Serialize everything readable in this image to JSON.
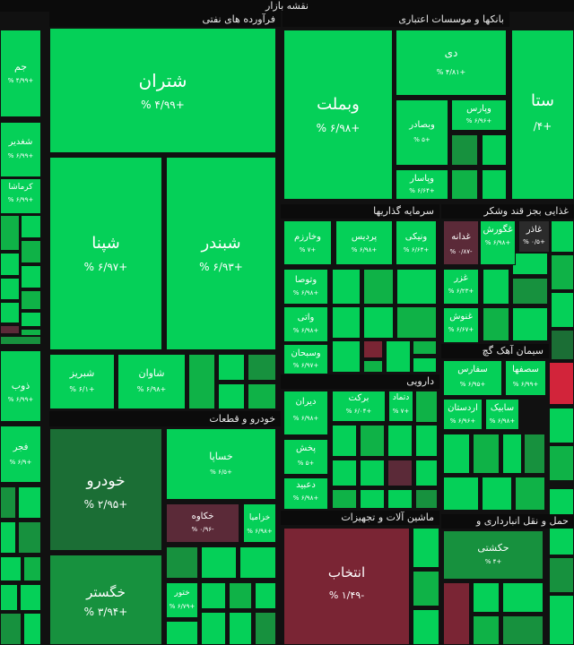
{
  "title": "نقشه بازار",
  "palette": {
    "g4": "#05d058",
    "g3": "#0fb247",
    "g2": "#17913e",
    "g1": "#1b6e35",
    "neutral": "#2b2b2b",
    "r1": "#5b2a38",
    "r2": "#7a2534",
    "r3": "#d2243a",
    "header": "#0b0b0b",
    "border": "#111111"
  },
  "chart_data": {
    "type": "treemap",
    "title": "نقشه بازار",
    "sectors": [
      "فرآورده های نفتی",
      "بانکها و موسسات اعتباری",
      "سرمایه گذاریها",
      "غذایی بجز قند وشکر",
      "خودرو و قطعات",
      "دارویی",
      "سیمان آهک گچ",
      "ماشین آلات و تجهیزات",
      "حمل و نقل انبارداری و"
    ],
    "stocks": [
      {
        "name": "شتران",
        "change": "+4.99 %"
      },
      {
        "name": "شپنا",
        "change": "+6.97 %"
      },
      {
        "name": "شبندر",
        "change": "+6.93 %"
      },
      {
        "name": "شاوان",
        "change": "+6.98 %"
      },
      {
        "name": "شبریز",
        "change": "+6.1 %"
      },
      {
        "name": "وبملت",
        "change": "+6.98 %"
      },
      {
        "name": "دی",
        "change": "+4.81 %"
      },
      {
        "name": "وپارس",
        "change": "+6.96 %"
      },
      {
        "name": "وبصادر",
        "change": "+5 %"
      },
      {
        "name": "وپاسار",
        "change": "+6.64 %"
      },
      {
        "name": "ستا",
        "change": "+4/"
      },
      {
        "name": "جم",
        "change": "+4.99 %"
      },
      {
        "name": "شغدیر",
        "change": "+6.99 %"
      },
      {
        "name": "کرماشا",
        "change": "+6.99 %"
      },
      {
        "name": "ذوب",
        "change": "+6.99 %"
      },
      {
        "name": "فجر",
        "change": "+6.9 %"
      },
      {
        "name": "وخارزم",
        "change": "+7 %"
      },
      {
        "name": "پردیس",
        "change": "+6.98 %"
      },
      {
        "name": "ونیکی",
        "change": "+6.64 %"
      },
      {
        "name": "وتوصا",
        "change": "+6.98 %"
      },
      {
        "name": "واتی",
        "change": "+6.98 %"
      },
      {
        "name": "وسبحان",
        "change": "+6.97 %"
      },
      {
        "name": "غدانه",
        "change": "-0.87 %"
      },
      {
        "name": "غگورش",
        "change": "+6.98 %"
      },
      {
        "name": "غاذر",
        "change": "+0.5 %"
      },
      {
        "name": "غزر",
        "change": "+6.23 %"
      },
      {
        "name": "غنوش",
        "change": "+6.67 %"
      },
      {
        "name": "خودرو",
        "change": "+2.95 %"
      },
      {
        "name": "خساپا",
        "change": "+6.5 %"
      },
      {
        "name": "خکاوه",
        "change": "-0.96 %"
      },
      {
        "name": "خزامیا",
        "change": "+6.98 %"
      },
      {
        "name": "خگستر",
        "change": "+3.94 %"
      },
      {
        "name": "ختور",
        "change": "+6.79 %"
      },
      {
        "name": "دیران",
        "change": "+6.98 %"
      },
      {
        "name": "برکت",
        "change": "+6.04 %"
      },
      {
        "name": "دتماد",
        "change": "+7 %"
      },
      {
        "name": "پخش",
        "change": "+5 %"
      },
      {
        "name": "دعبید",
        "change": "+6.98 %"
      },
      {
        "name": "سفارس",
        "change": "+6.95 %"
      },
      {
        "name": "سصفها",
        "change": "+6.99 %"
      },
      {
        "name": "اردستان",
        "change": "+6.96 %"
      },
      {
        "name": "سابیک",
        "change": "+6.98 %"
      },
      {
        "name": "انتخاب",
        "change": "-1.49 %"
      },
      {
        "name": "حکشتی",
        "change": "+4 %"
      }
    ]
  },
  "view": {
    "title": "نقشه بازار",
    "sectors": [
      {
        "label": "فرآورده های نفتی"
      },
      {
        "label": "بانکها و موسسات اعتباری"
      },
      {
        "label": "سرمایه گذاریها"
      },
      {
        "label": "غذایی بجز قند وشکر"
      },
      {
        "label": "خودرو و قطعات"
      },
      {
        "label": "دارویی"
      },
      {
        "label": "سیمان آهک گچ"
      },
      {
        "label": "ماشین آلات و تجهیزات"
      },
      {
        "label": "حمل و نقل انبارداری و"
      }
    ],
    "stocks": [
      {
        "sym": "شتران",
        "pct": "+۴/۹۹ %",
        "c": "g4"
      },
      {
        "sym": "شپنا",
        "pct": "+۶/۹۷ %",
        "c": "g4"
      },
      {
        "sym": "شبندر",
        "pct": "+۶/۹۳ %",
        "c": "g4"
      },
      {
        "sym": "شاوان",
        "pct": "+۶/۹۸ %",
        "c": "g4"
      },
      {
        "sym": "شبریز",
        "pct": "+۶/۱ %",
        "c": "g4"
      },
      {
        "sym": "وبملت",
        "pct": "+۶/۹۸ %",
        "c": "g4"
      },
      {
        "sym": "دی",
        "pct": "+۴/۸۱ %",
        "c": "g4"
      },
      {
        "sym": "وپارس",
        "pct": "+۶/۹۶ %",
        "c": "g4"
      },
      {
        "sym": "وبصادر",
        "pct": "+۵ %",
        "c": "g4"
      },
      {
        "sym": "وپاسار",
        "pct": "+۶/۶۴ %",
        "c": "g4"
      },
      {
        "sym": "ستا",
        "pct": "+۴/",
        "c": "g4"
      },
      {
        "sym": "جم",
        "pct": "+۴/۹۹ %",
        "c": "g4"
      },
      {
        "sym": "شغدیر",
        "pct": "+۶/۹۹ %",
        "c": "g4"
      },
      {
        "sym": "کرماشا",
        "pct": "+۶/۹۹ %",
        "c": "g4"
      },
      {
        "sym": "ذوب",
        "pct": "+۶/۹۹ %",
        "c": "g4"
      },
      {
        "sym": "فجر",
        "pct": "+۶/۹ %",
        "c": "g4"
      },
      {
        "sym": "وخارزم",
        "pct": "+۷ %",
        "c": "g4"
      },
      {
        "sym": "پردیس",
        "pct": "+۶/۹۸ %",
        "c": "g4"
      },
      {
        "sym": "ونیکی",
        "pct": "+۶/۶۴ %",
        "c": "g4"
      },
      {
        "sym": "وتوصا",
        "pct": "+۶/۹۸ %",
        "c": "g4"
      },
      {
        "sym": "واتی",
        "pct": "+۶/۹۸ %",
        "c": "g4"
      },
      {
        "sym": "وسبحان",
        "pct": "+۶/۹۷ %",
        "c": "g4"
      },
      {
        "sym": "غدانه",
        "pct": "-۰/۸۷ %",
        "c": "r1"
      },
      {
        "sym": "غگورش",
        "pct": "+۶/۹۸ %",
        "c": "g4"
      },
      {
        "sym": "غاذر",
        "pct": "+۰/۵ %",
        "c": "neutral"
      },
      {
        "sym": "غزر",
        "pct": "+۶/۲۳ %",
        "c": "g4"
      },
      {
        "sym": "غنوش",
        "pct": "+۶/۶۷ %",
        "c": "g4"
      },
      {
        "sym": "خودرو",
        "pct": "+۲/۹۵ %",
        "c": "g1"
      },
      {
        "sym": "خساپا",
        "pct": "+۶/۵ %",
        "c": "g4"
      },
      {
        "sym": "خکاوه",
        "pct": "-۰/۹۶ %",
        "c": "r1"
      },
      {
        "sym": "خزامیا",
        "pct": "+۶/۹۸ %",
        "c": "g4"
      },
      {
        "sym": "خگستر",
        "pct": "+۳/۹۴ %",
        "c": "g2"
      },
      {
        "sym": "ختور",
        "pct": "+۶/۷۹ %",
        "c": "g4"
      },
      {
        "sym": "دیران",
        "pct": "+۶/۹۸ %",
        "c": "g4"
      },
      {
        "sym": "برکت",
        "pct": "+۶/۰۴ %",
        "c": "g4"
      },
      {
        "sym": "دتماد",
        "pct": "+۷ %",
        "c": "g4"
      },
      {
        "sym": "پخش",
        "pct": "+۵ %",
        "c": "g4"
      },
      {
        "sym": "دعبید",
        "pct": "+۶/۹۸ %",
        "c": "g4"
      },
      {
        "sym": "سفارس",
        "pct": "+۶/۹۵ %",
        "c": "g4"
      },
      {
        "sym": "سصفها",
        "pct": "+۶/۹۹ %",
        "c": "g4"
      },
      {
        "sym": "اردستان",
        "pct": "+۶/۹۶ %",
        "c": "g4"
      },
      {
        "sym": "سابیک",
        "pct": "+۶/۹۸ %",
        "c": "g4"
      },
      {
        "sym": "انتخاب",
        "pct": "-۱/۴۹ %",
        "c": "r2"
      },
      {
        "sym": "حکشتی",
        "pct": "+۴ %",
        "c": "g2"
      }
    ]
  }
}
